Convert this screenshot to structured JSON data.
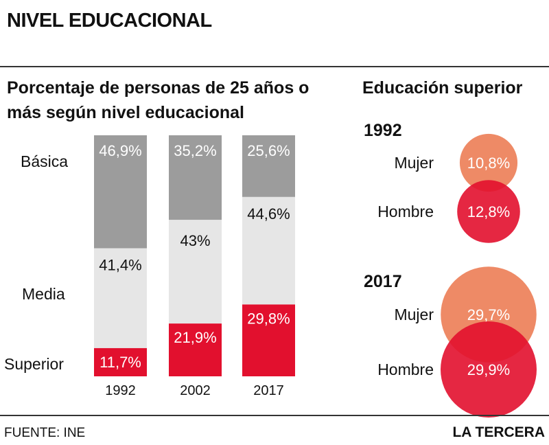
{
  "title": "NIVEL EDUCACIONAL",
  "footer": {
    "source": "FUENTE: INE",
    "brand": "LA TERCERA"
  },
  "colors": {
    "basica": "#9c9c9c",
    "media": "#e6e6e6",
    "superior": "#e2102e",
    "mujer": "#ee8a66",
    "hombre": "#e2102e"
  },
  "chart_data": [
    {
      "type": "bar",
      "stacked": true,
      "title": "Porcentaje de personas de 25 años o más según nivel educacional",
      "categories": [
        "1992",
        "2002",
        "2017"
      ],
      "series": [
        {
          "name": "Superior",
          "values": [
            11.7,
            21.9,
            29.8
          ],
          "labels": [
            "11,7%",
            "21,9%",
            "29,8%"
          ]
        },
        {
          "name": "Media",
          "values": [
            41.4,
            43,
            44.6
          ],
          "labels": [
            "41,4%",
            "43%",
            "44,6%"
          ]
        },
        {
          "name": "Básica",
          "values": [
            46.9,
            35.2,
            25.6
          ],
          "labels": [
            "46,9%",
            "35,2%",
            "25,6%"
          ]
        }
      ],
      "ylim": [
        0,
        100
      ]
    },
    {
      "type": "scatter",
      "subtype": "bubble",
      "title": "Educación superior",
      "groups": [
        {
          "year": "1992",
          "items": [
            {
              "name": "Mujer",
              "value": 10.8,
              "label": "10,8%"
            },
            {
              "name": "Hombre",
              "value": 12.8,
              "label": "12,8%"
            }
          ]
        },
        {
          "year": "2017",
          "items": [
            {
              "name": "Mujer",
              "value": 29.7,
              "label": "29,7%"
            },
            {
              "name": "Hombre",
              "value": 29.9,
              "label": "29,9%"
            }
          ]
        }
      ]
    }
  ]
}
